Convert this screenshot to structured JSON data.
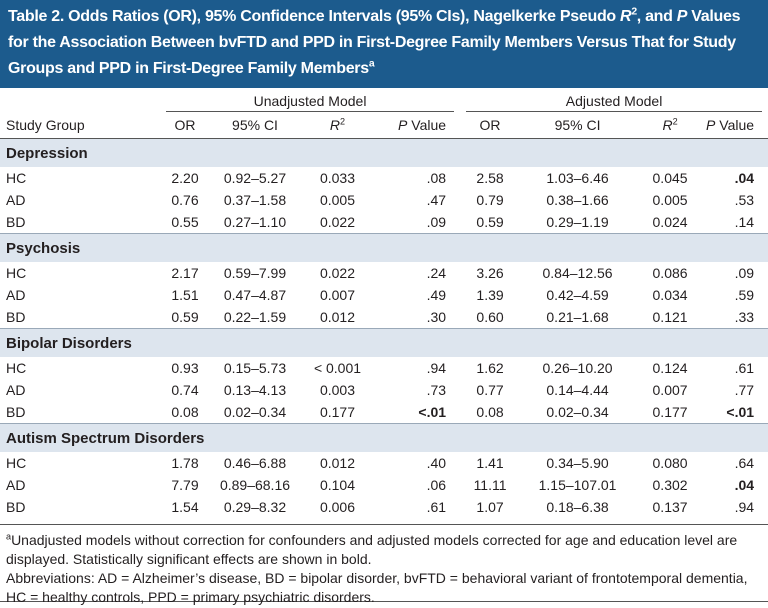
{
  "title": [
    {
      "text": "Table 2. Odds Ratios (OR), 95% Confidence Intervals (95% CIs), Nagelkerke Pseudo "
    },
    {
      "text": "R",
      "italic": true
    },
    {
      "text": "2",
      "sup": true
    },
    {
      "text": ", and "
    },
    {
      "text": "P",
      "italic": true
    },
    {
      "text": " Values for the Association Between bvFTD and PPD in First-Degree Family Members Versus That for Study Groups and PPD in First-Degree Family Members"
    },
    {
      "text": "a",
      "sup": true
    }
  ],
  "table": {
    "groups": [
      "Unadjusted Model",
      "Adjusted Model"
    ],
    "columns": [
      [
        {
          "text": "Study Group"
        }
      ],
      [
        {
          "text": "OR"
        }
      ],
      [
        {
          "text": "95% CI"
        }
      ],
      [
        {
          "text": "R",
          "italic": true
        },
        {
          "text": "2",
          "sup": true
        }
      ],
      [
        {
          "text": "P",
          "italic": true
        },
        {
          "text": " Value"
        }
      ],
      [
        {
          "text": "OR"
        }
      ],
      [
        {
          "text": "95% CI"
        }
      ],
      [
        {
          "text": "R",
          "italic": true
        },
        {
          "text": "2",
          "sup": true
        }
      ],
      [
        {
          "text": "P",
          "italic": true
        },
        {
          "text": " Value"
        }
      ]
    ],
    "sections": [
      {
        "label": "Depression",
        "rows": [
          {
            "cells": [
              "HC",
              "2.20",
              "0.92–5.27",
              "0.033",
              ".08",
              "2.58",
              "1.03–6.46",
              "0.045",
              ".04"
            ],
            "bold": [
              8
            ]
          },
          {
            "cells": [
              "AD",
              "0.76",
              "0.37–1.58",
              "0.005",
              ".47",
              "0.79",
              "0.38–1.66",
              "0.005",
              ".53"
            ]
          },
          {
            "cells": [
              "BD",
              "0.55",
              "0.27–1.10",
              "0.022",
              ".09",
              "0.59",
              "0.29–1.19",
              "0.024",
              ".14"
            ]
          }
        ]
      },
      {
        "label": "Psychosis",
        "rows": [
          {
            "cells": [
              "HC",
              "2.17",
              "0.59–7.99",
              "0.022",
              ".24",
              "3.26",
              "0.84–12.56",
              "0.086",
              ".09"
            ]
          },
          {
            "cells": [
              "AD",
              "1.51",
              "0.47–4.87",
              "0.007",
              ".49",
              "1.39",
              "0.42–4.59",
              "0.034",
              ".59"
            ]
          },
          {
            "cells": [
              "BD",
              "0.59",
              "0.22–1.59",
              "0.012",
              ".30",
              "0.60",
              "0.21–1.68",
              "0.121",
              ".33"
            ]
          }
        ]
      },
      {
        "label": "Bipolar Disorders",
        "rows": [
          {
            "cells": [
              "HC",
              "0.93",
              "0.15–5.73",
              "< 0.001",
              ".94",
              "1.62",
              "0.26–10.20",
              "0.124",
              ".61"
            ]
          },
          {
            "cells": [
              "AD",
              "0.74",
              "0.13–4.13",
              "0.003",
              ".73",
              "0.77",
              "0.14–4.44",
              "0.007",
              ".77"
            ]
          },
          {
            "cells": [
              "BD",
              "0.08",
              "0.02–0.34",
              "0.177",
              "<.01",
              "0.08",
              "0.02–0.34",
              "0.177",
              "<.01"
            ],
            "bold": [
              4,
              8
            ]
          }
        ]
      },
      {
        "label": "Autism Spectrum Disorders",
        "rows": [
          {
            "cells": [
              "HC",
              "1.78",
              "0.46–6.88",
              "0.012",
              ".40",
              "1.41",
              "0.34–5.90",
              "0.080",
              ".64"
            ]
          },
          {
            "cells": [
              "AD",
              "7.79",
              "0.89–68.16",
              "0.104",
              ".06",
              "11.11",
              "1.15–107.01",
              "0.302",
              ".04"
            ],
            "bold": [
              8
            ]
          },
          {
            "cells": [
              "BD",
              "1.54",
              "0.29–8.32",
              "0.006",
              ".61",
              "1.07",
              "0.18–6.38",
              "0.137",
              ".94"
            ]
          }
        ]
      }
    ]
  },
  "footnotes": [
    [
      {
        "text": "a",
        "sup": true
      },
      {
        "text": "Unadjusted models without correction for confounders and adjusted models corrected for age and education level are displayed. Statistically significant effects are shown in bold."
      }
    ],
    [
      {
        "text": "Abbreviations: AD = Alzheimer’s disease, BD = bipolar disorder, bvFTD = behavioral variant of frontotemporal dementia, HC = healthy controls, PPD = primary psychiatric disorders."
      }
    ]
  ]
}
